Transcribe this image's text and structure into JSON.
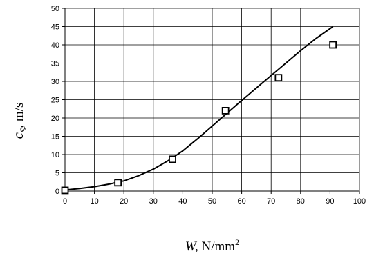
{
  "chart_data": {
    "type": "scatter",
    "xlabel": {
      "var": "W,",
      "unit": " N/mm",
      "sup": "2"
    },
    "ylabel": {
      "var": "c",
      "sub": "S",
      "unit": ", m/s"
    },
    "xlim": [
      0,
      100
    ],
    "ylim": [
      0,
      50
    ],
    "xticks": [
      0,
      10,
      20,
      30,
      40,
      50,
      60,
      70,
      80,
      90,
      100
    ],
    "yticks": [
      0,
      5,
      10,
      15,
      20,
      25,
      30,
      35,
      40,
      45,
      50
    ],
    "grid": true,
    "series": [
      {
        "kind": "points",
        "marker": "square",
        "x": [
          0,
          18,
          36.5,
          54.5,
          72.5,
          91
        ],
        "y": [
          0.2,
          2.3,
          8.7,
          22,
          31,
          40
        ]
      },
      {
        "kind": "line",
        "x": [
          0,
          5,
          10,
          15,
          20,
          25,
          30,
          35,
          40,
          45,
          50,
          55,
          60,
          65,
          70,
          75,
          80,
          85,
          91
        ],
        "y": [
          0.3,
          0.7,
          1.2,
          1.9,
          2.8,
          4.2,
          6.0,
          8.3,
          11.0,
          14.3,
          17.8,
          21.3,
          24.8,
          28.2,
          31.6,
          35.0,
          38.4,
          41.6,
          45.0
        ]
      }
    ]
  }
}
